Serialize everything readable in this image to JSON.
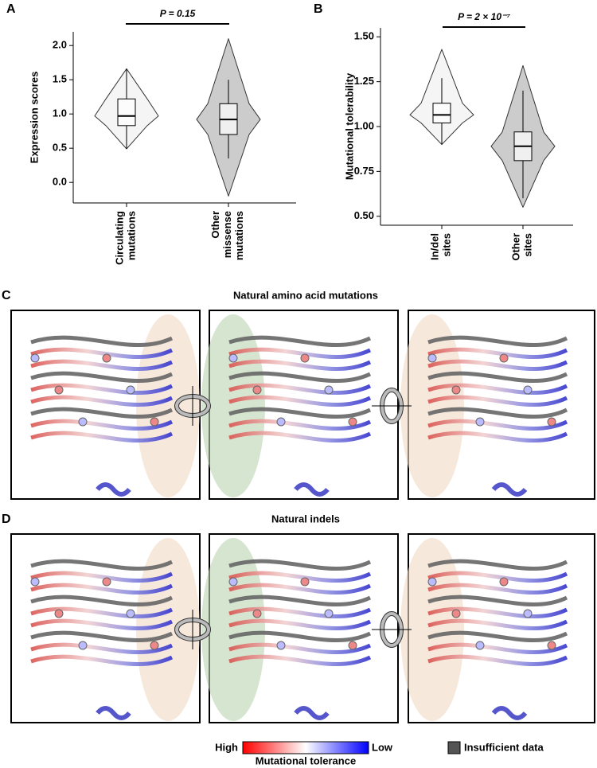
{
  "chart_data": [
    {
      "type": "violin",
      "panel_label": "A",
      "y_label": "Expression scores",
      "annotation": "P = 0.15",
      "categories": [
        "Circulating\nmutations",
        "Other\nmissense\nmutations"
      ],
      "boxes": [
        {
          "min": 0.49,
          "whisker_low": 0.49,
          "q1": 0.83,
          "median": 0.97,
          "q3": 1.22,
          "whisker_high": 1.66,
          "max": 1.66
        },
        {
          "min": -0.2,
          "whisker_low": 0.35,
          "q1": 0.7,
          "median": 0.92,
          "q3": 1.15,
          "whisker_high": 1.5,
          "max": 2.1
        }
      ],
      "ylim": [
        -0.3,
        2.2
      ],
      "yticks": [
        {
          "value": 0,
          "label": "0.0"
        },
        0.5,
        {
          "value": 1,
          "label": "1.0"
        },
        1.5,
        {
          "value": 2,
          "label": "2.0"
        }
      ]
    },
    {
      "type": "violin",
      "panel_label": "B",
      "y_label": "Mutational tolerability",
      "annotation": "P = 2 × 10⁻⁷",
      "categories": [
        "In/del\nsites",
        "Other\nsites"
      ],
      "boxes": [
        {
          "min": 0.9,
          "whisker_low": 0.9,
          "q1": 1.02,
          "median": 1.065,
          "q3": 1.13,
          "whisker_high": 1.27,
          "max": 1.43
        },
        {
          "min": 0.55,
          "whisker_low": 0.6,
          "q1": 0.81,
          "median": 0.89,
          "q3": 0.97,
          "whisker_high": 1.2,
          "max": 1.34
        }
      ],
      "ylim": [
        0.45,
        1.55
      ],
      "yticks": [
        {
          "value": 0.5,
          "label": "0.50"
        },
        {
          "value": 0.75,
          "label": "0.75"
        },
        {
          "value": 1,
          "label": "1.00"
        },
        {
          "value": 1.25,
          "label": "1.25"
        },
        {
          "value": 1.5,
          "label": "1.50"
        }
      ]
    }
  ],
  "panels": [
    {
      "label": "C",
      "title": "Natural amino acid mutations"
    },
    {
      "label": "D",
      "title": "Natural indels"
    }
  ],
  "legend": {
    "high": "High",
    "low": "Low",
    "title": "Mutational tolerance",
    "insufficient": "Insufficient data"
  }
}
